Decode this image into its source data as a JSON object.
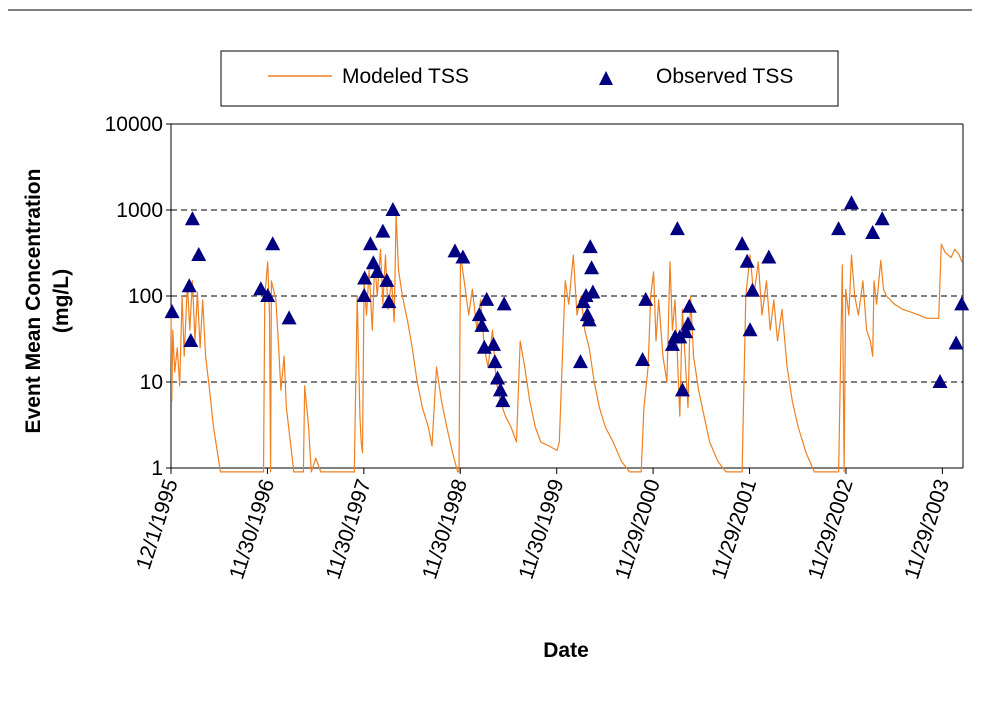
{
  "chart_data": {
    "type": "line",
    "title": "",
    "xlabel": "Date",
    "ylabel": "Event Mean Concentration (mg/L)",
    "ylabel_lines": [
      "Event Mean Concentration",
      "(mg/L)"
    ],
    "yscale": "log",
    "ylim": [
      1,
      10000
    ],
    "yticks": [
      1,
      10,
      100,
      1000,
      10000
    ],
    "ytick_labels": [
      "1",
      "10",
      "100",
      "1000",
      "10000"
    ],
    "xlim": [
      "12/1/1995",
      "2/15/2004"
    ],
    "xticks": [
      "12/1/1995",
      "11/30/1996",
      "11/30/1997",
      "11/30/1998",
      "11/30/1999",
      "11/29/2000",
      "11/29/2001",
      "11/29/2002",
      "11/29/2003"
    ],
    "grid": "horizontal dashed",
    "legend": "top",
    "series": [
      {
        "name": "Modeled TSS",
        "color": "#F08020",
        "style": "line",
        "points": [
          [
            "12/1/1995",
            60
          ],
          [
            "12/4/1995",
            6
          ],
          [
            "12/8/1995",
            40
          ],
          [
            "12/15/1995",
            13
          ],
          [
            "12/25/1995",
            25
          ],
          [
            "1/3/1996",
            9
          ],
          [
            "1/12/1996",
            100
          ],
          [
            "1/20/1996",
            20
          ],
          [
            "2/1/1996",
            140
          ],
          [
            "2/10/1996",
            40
          ],
          [
            "2/20/1996",
            150
          ],
          [
            "3/1/1996",
            30
          ],
          [
            "3/10/1996",
            110
          ],
          [
            "3/20/1996",
            25
          ],
          [
            "3/30/1996",
            90
          ],
          [
            "4/10/1996",
            20
          ],
          [
            "4/25/1996",
            8
          ],
          [
            "5/10/1996",
            3
          ],
          [
            "5/25/1996",
            1.5
          ],
          [
            "6/5/1996",
            0.9
          ],
          [
            "11/15/1996",
            0.9
          ],
          [
            "11/20/1996",
            100
          ],
          [
            "12/1/1996",
            250
          ],
          [
            "12/8/1996",
            60
          ],
          [
            "12/12/1996",
            0.9
          ],
          [
            "12/15/1996",
            150
          ],
          [
            "1/1/1997",
            90
          ],
          [
            "1/10/1997",
            30
          ],
          [
            "1/20/1997",
            8
          ],
          [
            "2/1/1997",
            20
          ],
          [
            "2/10/1997",
            5
          ],
          [
            "2/25/1997",
            2
          ],
          [
            "3/10/1997",
            0.9
          ],
          [
            "4/15/1997",
            0.9
          ],
          [
            "4/20/1997",
            9
          ],
          [
            "5/5/1997",
            3
          ],
          [
            "5/15/1997",
            0.9
          ],
          [
            "6/1/1997",
            1.3
          ],
          [
            "6/20/1997",
            0.9
          ],
          [
            "10/25/1997",
            0.9
          ],
          [
            "11/5/1997",
            100
          ],
          [
            "11/15/1997",
            4
          ],
          [
            "11/20/1997",
            2
          ],
          [
            "11/25/1997",
            1.5
          ],
          [
            "12/1/1997",
            150
          ],
          [
            "12/10/1997",
            60
          ],
          [
            "12/20/1997",
            200
          ],
          [
            "1/1/1998",
            40
          ],
          [
            "1/10/1998",
            250
          ],
          [
            "1/20/1998",
            100
          ],
          [
            "2/1/1998",
            350
          ],
          [
            "2/10/1998",
            80
          ],
          [
            "2/20/1998",
            300
          ],
          [
            "3/1/1998",
            70
          ],
          [
            "3/15/1998",
            150
          ],
          [
            "3/25/1998",
            50
          ],
          [
            "4/1/1998",
            900
          ],
          [
            "4/10/1998",
            200
          ],
          [
            "4/25/1998",
            100
          ],
          [
            "5/15/1998",
            50
          ],
          [
            "6/1/1998",
            25
          ],
          [
            "6/20/1998",
            10
          ],
          [
            "7/10/1998",
            5
          ],
          [
            "8/1/1998",
            3
          ],
          [
            "8/15/1998",
            1.8
          ],
          [
            "9/1/1998",
            15
          ],
          [
            "9/20/1998",
            6
          ],
          [
            "10/10/1998",
            3
          ],
          [
            "11/1/1998",
            1.5
          ],
          [
            "11/20/1998",
            0.9
          ],
          [
            "11/25/1998",
            0.9
          ],
          [
            "12/1/1998",
            300
          ],
          [
            "12/15/1998",
            150
          ],
          [
            "1/1/1999",
            60
          ],
          [
            "1/15/1999",
            120
          ],
          [
            "2/1/1999",
            40
          ],
          [
            "2/15/1999",
            90
          ],
          [
            "3/1/1999",
            25
          ],
          [
            "3/15/1999",
            15
          ],
          [
            "4/1/1999",
            40
          ],
          [
            "4/15/1999",
            10
          ],
          [
            "5/1/1999",
            6
          ],
          [
            "5/20/1999",
            4
          ],
          [
            "6/10/1999",
            3
          ],
          [
            "7/1/1999",
            2
          ],
          [
            "7/15/1999",
            30
          ],
          [
            "8/1/1999",
            15
          ],
          [
            "8/20/1999",
            6
          ],
          [
            "9/10/1999",
            3
          ],
          [
            "10/1/1999",
            2
          ],
          [
            "11/1/1999",
            1.8
          ],
          [
            "12/1/1999",
            1.6
          ],
          [
            "12/10/1999",
            2
          ],
          [
            "1/1/2000",
            150
          ],
          [
            "1/15/2000",
            80
          ],
          [
            "2/1/2000",
            300
          ],
          [
            "2/15/2000",
            60
          ],
          [
            "3/1/2000",
            100
          ],
          [
            "3/15/2000",
            40
          ],
          [
            "4/1/2000",
            25
          ],
          [
            "4/20/2000",
            10
          ],
          [
            "5/10/2000",
            5
          ],
          [
            "6/1/2000",
            3
          ],
          [
            "7/1/2000",
            2
          ],
          [
            "8/1/2000",
            1.2
          ],
          [
            "9/1/2000",
            0.9
          ],
          [
            "10/15/2000",
            0.9
          ],
          [
            "10/25/2000",
            5
          ],
          [
            "11/10/2000",
            15
          ],
          [
            "11/20/2000",
            100
          ],
          [
            "12/1/2000",
            190
          ],
          [
            "12/10/2000",
            30
          ],
          [
            "12/20/2000",
            90
          ],
          [
            "1/5/2001",
            20
          ],
          [
            "1/20/2001",
            10
          ],
          [
            "2/1/2001",
            250
          ],
          [
            "2/10/2001",
            40
          ],
          [
            "2/20/2001",
            90
          ],
          [
            "3/1/2001",
            20
          ],
          [
            "3/10/2001",
            4
          ],
          [
            "3/20/2001",
            70
          ],
          [
            "4/1/2001",
            15
          ],
          [
            "4/10/2001",
            5
          ],
          [
            "4/20/2001",
            100
          ],
          [
            "5/1/2001",
            20
          ],
          [
            "5/20/2001",
            8
          ],
          [
            "6/10/2001",
            4
          ],
          [
            "7/1/2001",
            2
          ],
          [
            "8/1/2001",
            1.2
          ],
          [
            "9/1/2001",
            0.9
          ],
          [
            "11/1/2001",
            0.9
          ],
          [
            "11/15/2001",
            100
          ],
          [
            "12/1/2001",
            300
          ],
          [
            "12/15/2001",
            100
          ],
          [
            "1/1/2002",
            250
          ],
          [
            "1/15/2002",
            60
          ],
          [
            "2/1/2002",
            150
          ],
          [
            "2/15/2002",
            40
          ],
          [
            "3/1/2002",
            90
          ],
          [
            "3/15/2002",
            30
          ],
          [
            "4/1/2002",
            70
          ],
          [
            "4/20/2002",
            15
          ],
          [
            "5/10/2002",
            6
          ],
          [
            "6/1/2002",
            3
          ],
          [
            "7/1/2002",
            1.5
          ],
          [
            "8/1/2002",
            0.9
          ],
          [
            "11/1/2002",
            0.9
          ],
          [
            "11/15/2002",
            230
          ],
          [
            "11/22/2002",
            0.9
          ],
          [
            "11/28/2002",
            120
          ],
          [
            "12/10/2002",
            60
          ],
          [
            "12/20/2002",
            300
          ],
          [
            "1/1/2003",
            100
          ],
          [
            "1/15/2003",
            60
          ],
          [
            "2/1/2003",
            150
          ],
          [
            "2/15/2003",
            40
          ],
          [
            "3/1/2003",
            30
          ],
          [
            "3/10/2003",
            20
          ],
          [
            "3/15/2003",
            150
          ],
          [
            "3/25/2003",
            80
          ],
          [
            "4/10/2003",
            260
          ],
          [
            "4/20/2003",
            120
          ],
          [
            "5/1/2003",
            100
          ],
          [
            "6/1/2003",
            80
          ],
          [
            "7/1/2003",
            70
          ],
          [
            "8/1/2003",
            65
          ],
          [
            "9/1/2003",
            60
          ],
          [
            "10/1/2003",
            55
          ],
          [
            "11/1/2003",
            55
          ],
          [
            "11/15/2003",
            55
          ],
          [
            "11/25/2003",
            400
          ],
          [
            "12/10/2003",
            320
          ],
          [
            "1/1/2004",
            280
          ],
          [
            "1/15/2004",
            350
          ],
          [
            "2/1/2004",
            300
          ],
          [
            "2/10/2004",
            250
          ]
        ]
      },
      {
        "name": "Observed TSS",
        "color": "#000080",
        "style": "triangle",
        "points": [
          [
            "12/5/1995",
            65
          ],
          [
            "2/8/1996",
            130
          ],
          [
            "2/14/1996",
            30
          ],
          [
            "2/20/1996",
            780
          ],
          [
            "3/15/1996",
            300
          ],
          [
            "11/5/1996",
            120
          ],
          [
            "12/1/1996",
            100
          ],
          [
            "12/20/1996",
            400
          ],
          [
            "2/20/1997",
            55
          ],
          [
            "12/1/1997",
            100
          ],
          [
            "12/3/1997",
            160
          ],
          [
            "12/25/1997",
            400
          ],
          [
            "1/5/1998",
            240
          ],
          [
            "1/20/1998",
            190
          ],
          [
            "2/10/1998",
            560
          ],
          [
            "2/25/1998",
            150
          ],
          [
            "3/5/1998",
            85
          ],
          [
            "3/20/1998",
            1000
          ],
          [
            "11/10/1998",
            330
          ],
          [
            "12/10/1998",
            280
          ],
          [
            "2/10/1999",
            60
          ],
          [
            "2/20/1999",
            45
          ],
          [
            "3/1/1999",
            25
          ],
          [
            "3/10/1999",
            90
          ],
          [
            "4/5/1999",
            27
          ],
          [
            "4/10/1999",
            17
          ],
          [
            "4/20/1999",
            11
          ],
          [
            "5/1/1999",
            8
          ],
          [
            "5/10/1999",
            6
          ],
          [
            "5/15/1999",
            80
          ],
          [
            "2/28/2000",
            17
          ],
          [
            "3/10/2000",
            85
          ],
          [
            "3/20/2000",
            100
          ],
          [
            "3/25/2000",
            60
          ],
          [
            "4/1/2000",
            52
          ],
          [
            "4/5/2000",
            370
          ],
          [
            "4/10/2000",
            210
          ],
          [
            "4/15/2000",
            110
          ],
          [
            "10/20/2000",
            18
          ],
          [
            "11/1/2000",
            90
          ],
          [
            "2/10/2001",
            27
          ],
          [
            "2/20/2001",
            33
          ],
          [
            "3/1/2001",
            600
          ],
          [
            "3/10/2001",
            33
          ],
          [
            "3/20/2001",
            8
          ],
          [
            "4/1/2001",
            38
          ],
          [
            "4/10/2001",
            47
          ],
          [
            "4/15/2001",
            75
          ],
          [
            "11/1/2001",
            400
          ],
          [
            "11/20/2001",
            250
          ],
          [
            "12/1/2001",
            40
          ],
          [
            "12/10/2001",
            115
          ],
          [
            "2/10/2002",
            280
          ],
          [
            "11/1/2002",
            600
          ],
          [
            "12/20/2002",
            1200
          ],
          [
            "3/10/2003",
            540
          ],
          [
            "4/15/2003",
            780
          ],
          [
            "11/20/2003",
            10
          ],
          [
            "1/20/2004",
            28
          ],
          [
            "2/10/2004",
            80
          ]
        ]
      }
    ]
  }
}
